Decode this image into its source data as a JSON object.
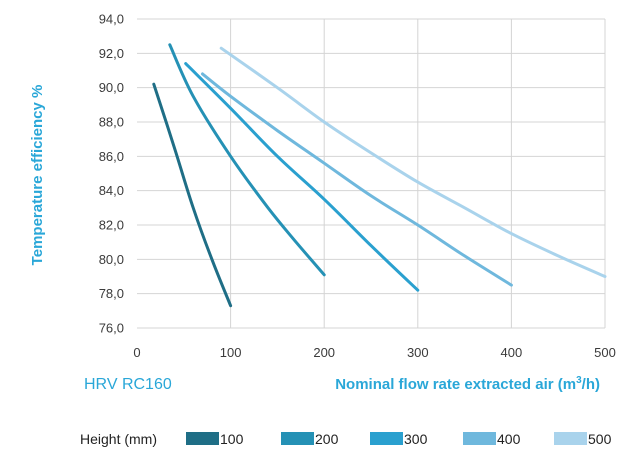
{
  "chart_data": {
    "type": "line",
    "ylabel": "Temperature efficiency %",
    "xlabel_main": "Nominal flow rate extracted air (m",
    "xlabel_sup": "3",
    "xlabel_tail": "/h)",
    "model_label": "HRV RC160",
    "xlim": [
      0,
      500
    ],
    "ylim": [
      76,
      94
    ],
    "x_ticks": [
      0,
      100,
      200,
      300,
      400,
      500
    ],
    "x_tick_labels": [
      "0",
      "100",
      "200",
      "300",
      "400",
      "500"
    ],
    "y_ticks": [
      76,
      78,
      80,
      82,
      84,
      86,
      88,
      90,
      92,
      94
    ],
    "y_tick_labels": [
      "76,0",
      "78,0",
      "80,0",
      "82,0",
      "84,0",
      "86,0",
      "88,0",
      "90,0",
      "92,0",
      "94,0"
    ],
    "grid": true,
    "legend_title": "Height (mm)",
    "legend_position": "bottom",
    "series": [
      {
        "name": "100",
        "color": "#1f6e86",
        "x": [
          18,
          40,
          60,
          80,
          100
        ],
        "y": [
          90.2,
          86.5,
          83.0,
          80.0,
          77.3
        ]
      },
      {
        "name": "200",
        "color": "#2591b5",
        "x": [
          35,
          60,
          100,
          140,
          170,
          200
        ],
        "y": [
          92.5,
          89.5,
          86.0,
          83.0,
          81.0,
          79.1
        ]
      },
      {
        "name": "300",
        "color": "#2aa0cf",
        "x": [
          52,
          100,
          150,
          200,
          250,
          300
        ],
        "y": [
          91.4,
          88.8,
          86.0,
          83.5,
          80.8,
          78.2
        ]
      },
      {
        "name": "400",
        "color": "#6fb8dd",
        "x": [
          70,
          100,
          150,
          200,
          250,
          300,
          350,
          400
        ],
        "y": [
          90.8,
          89.5,
          87.5,
          85.6,
          83.7,
          82.0,
          80.2,
          78.5
        ]
      },
      {
        "name": "500",
        "color": "#a9d3ec",
        "x": [
          90,
          150,
          200,
          250,
          300,
          350,
          400,
          450,
          500
        ],
        "y": [
          92.3,
          90.0,
          88.0,
          86.2,
          84.5,
          83.0,
          81.5,
          80.2,
          79.0
        ]
      }
    ]
  }
}
